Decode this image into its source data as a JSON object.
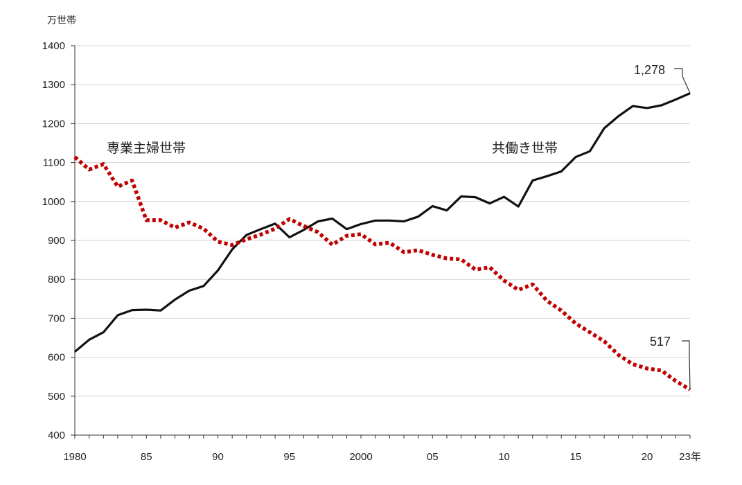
{
  "chart_data": {
    "type": "line",
    "ylabel": "万世帯",
    "ylim": [
      400,
      1400
    ],
    "yticks": [
      400,
      500,
      600,
      700,
      800,
      900,
      1000,
      1100,
      1200,
      1300,
      1400
    ],
    "xlim": [
      1980,
      2023
    ],
    "xticks": [
      {
        "year": 1980,
        "label": "1980"
      },
      {
        "year": 1985,
        "label": "85"
      },
      {
        "year": 1990,
        "label": "90"
      },
      {
        "year": 1995,
        "label": "95"
      },
      {
        "year": 2000,
        "label": "2000"
      },
      {
        "year": 2005,
        "label": "05"
      },
      {
        "year": 2010,
        "label": "10"
      },
      {
        "year": 2015,
        "label": "15"
      },
      {
        "year": 2020,
        "label": "20"
      },
      {
        "year": 2023,
        "label": "23年"
      }
    ],
    "grid": true,
    "x": [
      1980,
      1981,
      1982,
      1983,
      1984,
      1985,
      1986,
      1987,
      1988,
      1989,
      1990,
      1991,
      1992,
      1993,
      1994,
      1995,
      1996,
      1997,
      1998,
      1999,
      2000,
      2001,
      2002,
      2003,
      2004,
      2005,
      2006,
      2007,
      2008,
      2009,
      2010,
      2011,
      2012,
      2013,
      2014,
      2015,
      2016,
      2017,
      2018,
      2019,
      2020,
      2021,
      2022,
      2023
    ],
    "series": [
      {
        "name": "共働き世帯",
        "color": "#111111",
        "style": "solid",
        "values": [
          614,
          645,
          664,
          708,
          721,
          722,
          720,
          748,
          771,
          783,
          823,
          877,
          914,
          929,
          943,
          908,
          927,
          949,
          956,
          929,
          942,
          951,
          951,
          949,
          961,
          988,
          977,
          1013,
          1011,
          995,
          1012,
          987,
          1054,
          1065,
          1077,
          1114,
          1129,
          1188,
          1219,
          1245,
          1240,
          1247,
          1262,
          1278
        ],
        "end_label": "1,278"
      },
      {
        "name": "専業主婦世帯",
        "color": "#c00000",
        "style": "dotted",
        "values": [
          1114,
          1082,
          1096,
          1038,
          1054,
          952,
          952,
          933,
          946,
          930,
          897,
          888,
          903,
          915,
          930,
          955,
          937,
          921,
          889,
          912,
          916,
          890,
          894,
          870,
          875,
          863,
          854,
          851,
          825,
          831,
          797,
          773,
          787,
          745,
          720,
          687,
          664,
          641,
          606,
          582,
          571,
          566,
          539,
          517
        ],
        "end_label": "517"
      }
    ]
  }
}
